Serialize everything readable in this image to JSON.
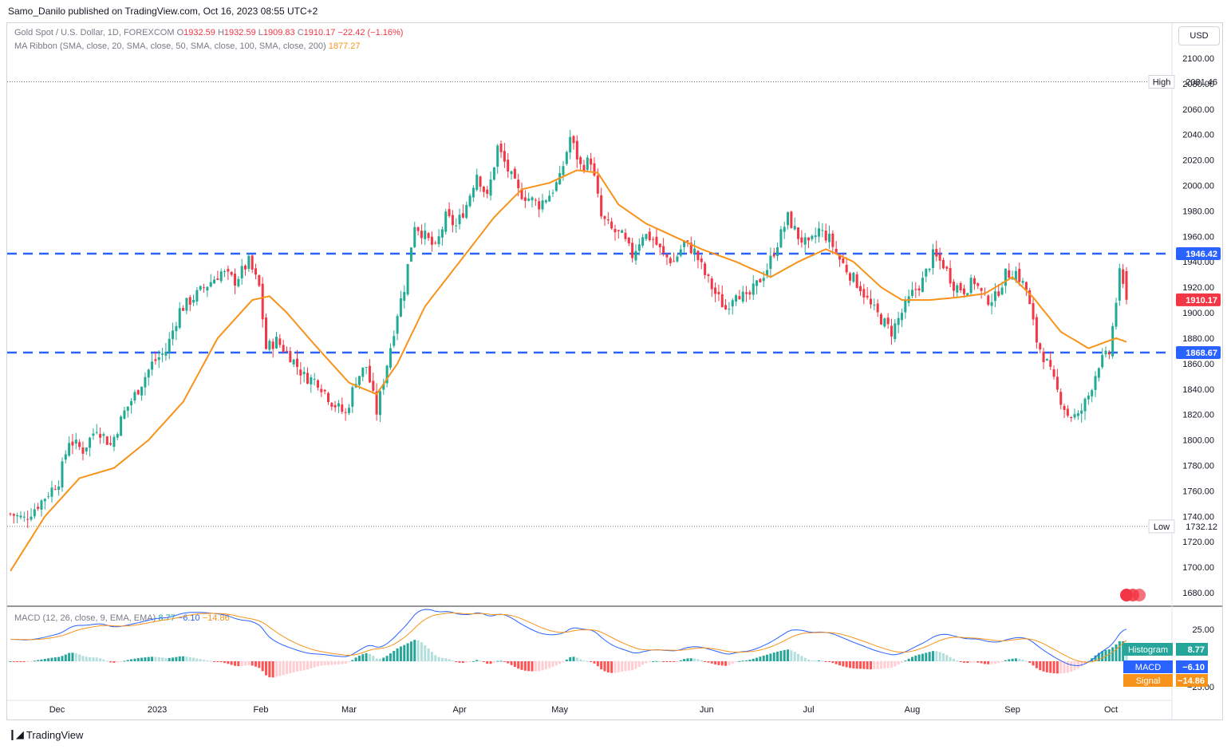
{
  "header": {
    "publisher": "Samo_Danilo published on TradingView.com, Oct 16, 2023 08:55 UTC+2",
    "symbol": "Gold Spot / U.S. Dollar, 1D, FOREXCOM",
    "ohlc": {
      "o_label": "O",
      "o": "1932.59",
      "h_label": "H",
      "h": "1932.59",
      "l_label": "L",
      "l": "1909.83",
      "c_label": "C",
      "c": "1910.17",
      "change": "−22.42 (−1.16%)"
    },
    "indicator": "MA Ribbon (SMA, close, 20, SMA, close, 50, SMA, close, 100, SMA, close, 200)",
    "indicator_value": "1877.27",
    "currency_button": "USD"
  },
  "price_scale": {
    "ticks": [
      "2100.00",
      "2080.00",
      "2060.00",
      "2040.00",
      "2020.00",
      "2000.00",
      "1980.00",
      "1960.00",
      "1940.00",
      "1920.00",
      "1900.00",
      "1880.00",
      "1860.00",
      "1840.00",
      "1820.00",
      "1800.00",
      "1780.00",
      "1760.00",
      "1740.00",
      "1720.00",
      "1700.00",
      "1680.00"
    ],
    "high_label": "High",
    "high_value": "2081.46",
    "low_label": "Low",
    "low_value": "1732.12",
    "resistance_value": "1946.42",
    "last_value": "1910.17",
    "support_value": "1868.67"
  },
  "time_axis": [
    "Dec",
    "2023",
    "Feb",
    "Mar",
    "Apr",
    "May",
    "Jun",
    "Jul",
    "Aug",
    "Sep",
    "Oct"
  ],
  "macd": {
    "legend": "MACD (12, 26, close, 9, EMA, EMA)",
    "hist_value": "8.77",
    "macd_value": "−6.10",
    "signal_value": "−14.86",
    "scale_ticks": [
      "25.00",
      "−25.00"
    ],
    "histogram_label": "Histogram",
    "macd_label": "MACD",
    "signal_label": "Signal"
  },
  "footer": {
    "brand": "TradingView"
  },
  "colors": {
    "up": "#22ab94",
    "down": "#f23645",
    "ma": "#f7931a",
    "level": "#2962ff",
    "macd": "#2962ff",
    "signal": "#f7931a",
    "hist_up_strong": "#26a69a",
    "hist_up_weak": "#b2dfdb",
    "hist_down_strong": "#ff5252",
    "hist_down_weak": "#ffcdd2"
  },
  "chart_data": {
    "type": "candlestick",
    "title": "Gold Spot / U.S. Dollar, 1D, FOREXCOM",
    "x_months": [
      "Dec",
      "2023",
      "Feb",
      "Mar",
      "Apr",
      "May",
      "Jun",
      "Jul",
      "Aug",
      "Sep",
      "Oct"
    ],
    "ylim": [
      1670,
      2110
    ],
    "horizontal_levels": [
      1946.42,
      1868.67
    ],
    "high": 2081.46,
    "low": 1732.12,
    "last_close": 1910.17,
    "ma20_last": 1877.27,
    "close_path": [
      [
        0,
        1742
      ],
      [
        4,
        1738
      ],
      [
        9,
        1752
      ],
      [
        14,
        1768
      ],
      [
        17,
        1800
      ],
      [
        21,
        1792
      ],
      [
        25,
        1810
      ],
      [
        29,
        1796
      ],
      [
        33,
        1822
      ],
      [
        37,
        1840
      ],
      [
        41,
        1860
      ],
      [
        45,
        1870
      ],
      [
        49,
        1902
      ],
      [
        53,
        1912
      ],
      [
        57,
        1922
      ],
      [
        61,
        1932
      ],
      [
        65,
        1925
      ],
      [
        69,
        1940
      ],
      [
        72,
        1920
      ],
      [
        74,
        1872
      ],
      [
        77,
        1878
      ],
      [
        81,
        1866
      ],
      [
        85,
        1850
      ],
      [
        89,
        1846
      ],
      [
        93,
        1830
      ],
      [
        97,
        1820
      ],
      [
        100,
        1848
      ],
      [
        103,
        1858
      ],
      [
        106,
        1822
      ],
      [
        109,
        1860
      ],
      [
        112,
        1900
      ],
      [
        114,
        1920
      ],
      [
        117,
        1970
      ],
      [
        120,
        1960
      ],
      [
        123,
        1950
      ],
      [
        126,
        1975
      ],
      [
        129,
        1968
      ],
      [
        132,
        1985
      ],
      [
        135,
        2010
      ],
      [
        138,
        1990
      ],
      [
        141,
        2030
      ],
      [
        144,
        2012
      ],
      [
        147,
        1995
      ],
      [
        150,
        1990
      ],
      [
        153,
        1985
      ],
      [
        156,
        1993
      ],
      [
        159,
        2005
      ],
      [
        162,
        2038
      ],
      [
        165,
        2015
      ],
      [
        168,
        2020
      ],
      [
        171,
        1975
      ],
      [
        174,
        1965
      ],
      [
        177,
        1960
      ],
      [
        180,
        1945
      ],
      [
        183,
        1962
      ],
      [
        186,
        1958
      ],
      [
        189,
        1945
      ],
      [
        192,
        1940
      ],
      [
        195,
        1955
      ],
      [
        198,
        1948
      ],
      [
        201,
        1930
      ],
      [
        204,
        1915
      ],
      [
        207,
        1903
      ],
      [
        210,
        1918
      ],
      [
        213,
        1910
      ],
      [
        216,
        1922
      ],
      [
        219,
        1935
      ],
      [
        222,
        1955
      ],
      [
        225,
        1975
      ],
      [
        228,
        1960
      ],
      [
        231,
        1952
      ],
      [
        234,
        1965
      ],
      [
        237,
        1958
      ],
      [
        240,
        1942
      ],
      [
        243,
        1930
      ],
      [
        246,
        1920
      ],
      [
        249,
        1905
      ],
      [
        252,
        1895
      ],
      [
        255,
        1885
      ],
      [
        258,
        1900
      ],
      [
        261,
        1915
      ],
      [
        264,
        1925
      ],
      [
        267,
        1945
      ],
      [
        270,
        1938
      ],
      [
        273,
        1922
      ],
      [
        276,
        1918
      ],
      [
        279,
        1925
      ],
      [
        282,
        1910
      ],
      [
        285,
        1912
      ],
      [
        288,
        1930
      ],
      [
        291,
        1932
      ],
      [
        294,
        1918
      ],
      [
        297,
        1878
      ],
      [
        300,
        1860
      ],
      [
        303,
        1838
      ],
      [
        306,
        1820
      ],
      [
        309,
        1818
      ],
      [
        312,
        1835
      ],
      [
        315,
        1860
      ],
      [
        318,
        1868
      ],
      [
        321,
        1930
      ],
      [
        323,
        1910
      ]
    ],
    "ma20_path": [
      [
        0,
        1697
      ],
      [
        10,
        1740
      ],
      [
        20,
        1770
      ],
      [
        30,
        1778
      ],
      [
        40,
        1800
      ],
      [
        50,
        1830
      ],
      [
        60,
        1880
      ],
      [
        70,
        1910
      ],
      [
        75,
        1913
      ],
      [
        80,
        1900
      ],
      [
        88,
        1875
      ],
      [
        98,
        1845
      ],
      [
        106,
        1836
      ],
      [
        112,
        1860
      ],
      [
        120,
        1905
      ],
      [
        130,
        1940
      ],
      [
        140,
        1975
      ],
      [
        148,
        1997
      ],
      [
        156,
        2002
      ],
      [
        164,
        2012
      ],
      [
        170,
        2010
      ],
      [
        176,
        1985
      ],
      [
        184,
        1970
      ],
      [
        192,
        1960
      ],
      [
        200,
        1950
      ],
      [
        210,
        1940
      ],
      [
        220,
        1928
      ],
      [
        228,
        1940
      ],
      [
        236,
        1950
      ],
      [
        244,
        1940
      ],
      [
        252,
        1920
      ],
      [
        258,
        1910
      ],
      [
        266,
        1910
      ],
      [
        274,
        1912
      ],
      [
        282,
        1915
      ],
      [
        290,
        1928
      ],
      [
        296,
        1912
      ],
      [
        304,
        1885
      ],
      [
        312,
        1872
      ],
      [
        320,
        1880
      ],
      [
        323,
        1877
      ]
    ]
  }
}
